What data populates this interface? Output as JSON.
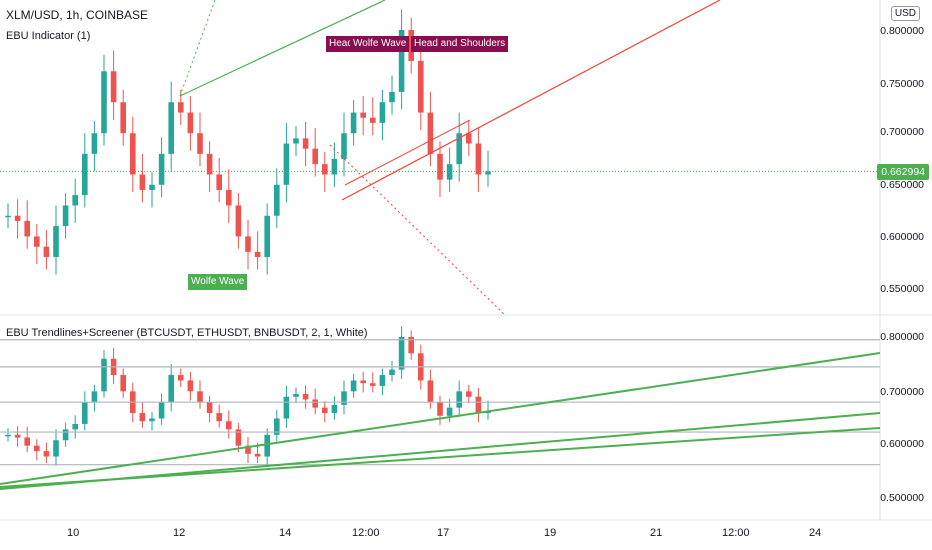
{
  "header": {
    "symbol": "XLM/USD, 1h, COINBASE",
    "indicator1": "EBU Indicator (1)",
    "indicator2": "EBU Trendlines+Screener (BTCUSDT, ETHUSDT, BNBUSDT, 2, 1, White)",
    "currency": "USD"
  },
  "patterns": [
    {
      "label": "Head ar",
      "color": "#880e4f"
    },
    {
      "label": "Wolfe Wave",
      "color": "#880e4f"
    },
    {
      "label": "Head and Shoulders",
      "color": "#880e4f"
    },
    {
      "label": "Wolfe Wave",
      "color": "#4caf50"
    }
  ],
  "last_price": "0.662994",
  "chart_data": [
    {
      "type": "candlestick",
      "panel": "main",
      "y_ticks": [
        "0.800000",
        "0.750000",
        "0.700000",
        "0.650000",
        "0.600000",
        "0.550000"
      ],
      "ylim": [
        0.53,
        0.82
      ],
      "x_ticks": [
        "10",
        "12",
        "14",
        "12:00",
        "17",
        "19",
        "21",
        "12:00",
        "24"
      ],
      "close_series_approx": [
        0.62,
        0.615,
        0.6,
        0.59,
        0.58,
        0.61,
        0.63,
        0.64,
        0.68,
        0.7,
        0.76,
        0.73,
        0.7,
        0.66,
        0.645,
        0.65,
        0.68,
        0.73,
        0.72,
        0.7,
        0.68,
        0.66,
        0.645,
        0.63,
        0.6,
        0.585,
        0.58,
        0.62,
        0.65,
        0.69,
        0.695,
        0.685,
        0.67,
        0.66,
        0.675,
        0.7,
        0.72,
        0.715,
        0.71,
        0.73,
        0.74,
        0.8,
        0.77,
        0.72,
        0.68,
        0.655,
        0.67,
        0.7,
        0.69,
        0.66,
        0.663
      ]
    },
    {
      "type": "candlestick",
      "panel": "screener",
      "y_ticks": [
        "0.800000",
        "0.700000",
        "0.600000",
        "0.500000"
      ],
      "ylim": [
        0.47,
        0.82
      ],
      "horizontal_levels": [
        0.795,
        0.745,
        0.68,
        0.625,
        0.565
      ]
    }
  ],
  "colors": {
    "up": "#26a69a",
    "down": "#ef5350",
    "trend_green": "#4caf50",
    "trend_red": "#f44336",
    "last_price": "#4caf50"
  }
}
